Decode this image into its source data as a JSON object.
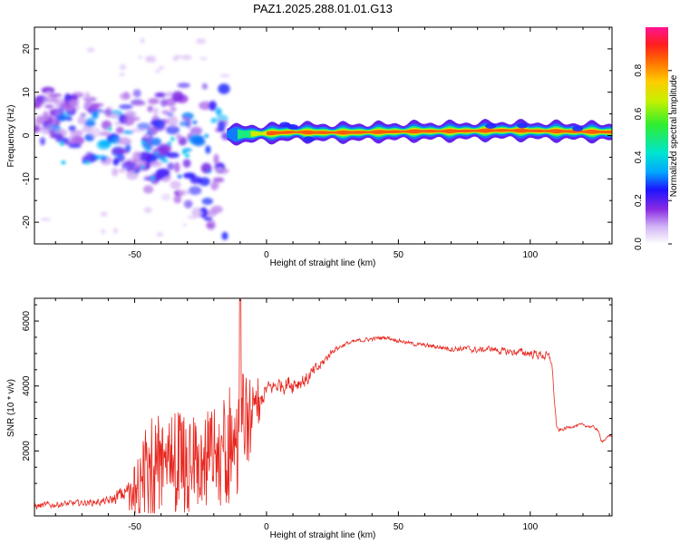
{
  "figure_title": "PAZ1.2025.288.01.01.G13",
  "colors": {
    "snr_line": "#e8261e",
    "frame": "#000000",
    "colormap": [
      "#ffffff",
      "#c89cf0",
      "#8a2be2",
      "#2a1bff",
      "#00b4ff",
      "#00e8c8",
      "#33ee33",
      "#c8f000",
      "#ffcc00",
      "#ff7a00",
      "#ff1e1e",
      "#ff1493"
    ]
  },
  "chart_data": [
    {
      "type": "heatmap",
      "title": "",
      "xlabel": "Height of straight line (km)",
      "ylabel": "Frequency (Hz)",
      "xlim": [
        -88,
        131
      ],
      "ylim": [
        -25,
        25
      ],
      "xticks": [
        -50,
        0,
        50,
        100
      ],
      "yticks": [
        -20,
        -10,
        0,
        10,
        20
      ],
      "colorbar": {
        "label": "Normalized spectral amplitude",
        "range": [
          0.0,
          1.0
        ],
        "ticks": [
          0.0,
          0.2,
          0.4,
          0.6,
          0.8
        ]
      },
      "ridge": {
        "description": "narrow high-amplitude line near 0-1 Hz for heights above about -15 km",
        "x": [
          -15,
          -10,
          0,
          10,
          20,
          30,
          40,
          50,
          60,
          70,
          80,
          90,
          100,
          110,
          120,
          131
        ],
        "freq": [
          0.3,
          0.3,
          0.5,
          0.8,
          0.7,
          0.7,
          0.8,
          0.9,
          1.0,
          1.0,
          1.1,
          1.2,
          1.1,
          1.0,
          0.9,
          0.8
        ],
        "amplitude": [
          0.35,
          0.5,
          0.8,
          0.85,
          0.9,
          0.9,
          0.85,
          0.9,
          0.85,
          0.9,
          0.85,
          0.95,
          0.9,
          0.8,
          0.9,
          0.85
        ]
      },
      "diffuse_region": {
        "description": "scattered low-amplitude (0.1-0.35) patches spread between about -25 and +12 Hz for heights from -88 to -15 km",
        "x_range": [
          -88,
          -15
        ],
        "freq_range": [
          -25,
          12
        ],
        "amplitude_range": [
          0.05,
          0.35
        ]
      }
    },
    {
      "type": "line",
      "title": "",
      "xlabel": "Height of straight line (km)",
      "ylabel": "SNR (10 * v/v)",
      "xlim": [
        -88,
        131
      ],
      "ylim": [
        0,
        6700
      ],
      "xticks": [
        -50,
        0,
        50,
        100
      ],
      "yticks": [
        2000,
        4000,
        6000
      ],
      "series": [
        {
          "name": "SNR",
          "x": [
            -88,
            -80,
            -70,
            -60,
            -55,
            -50,
            -45,
            -40,
            -35,
            -30,
            -25,
            -20,
            -15,
            -12,
            -10,
            -8,
            -5,
            0,
            5,
            10,
            15,
            20,
            25,
            30,
            35,
            40,
            45,
            50,
            55,
            60,
            65,
            70,
            75,
            80,
            85,
            90,
            95,
            100,
            105,
            108,
            109,
            110,
            115,
            120,
            125,
            127,
            131
          ],
          "y": [
            300,
            350,
            400,
            450,
            650,
            900,
            1400,
            1600,
            1650,
            1600,
            1700,
            1800,
            2000,
            2300,
            2800,
            2800,
            3200,
            3900,
            4050,
            4100,
            4200,
            4600,
            5100,
            5300,
            5400,
            5450,
            5500,
            5400,
            5300,
            5250,
            5200,
            5150,
            5150,
            5100,
            5150,
            5050,
            5050,
            5000,
            4950,
            4800,
            3500,
            2600,
            2750,
            2800,
            2700,
            2300,
            2500
          ],
          "noise": [
            200,
            150,
            150,
            200,
            450,
            700,
            1300,
            1400,
            1300,
            1300,
            1200,
            1300,
            1500,
            1700,
            1500,
            1300,
            800,
            400,
            400,
            500,
            400,
            300,
            150,
            100,
            100,
            100,
            100,
            100,
            100,
            100,
            120,
            150,
            150,
            150,
            150,
            180,
            200,
            200,
            250,
            250,
            100,
            100,
            80,
            80,
            80,
            80,
            80
          ]
        }
      ]
    }
  ]
}
